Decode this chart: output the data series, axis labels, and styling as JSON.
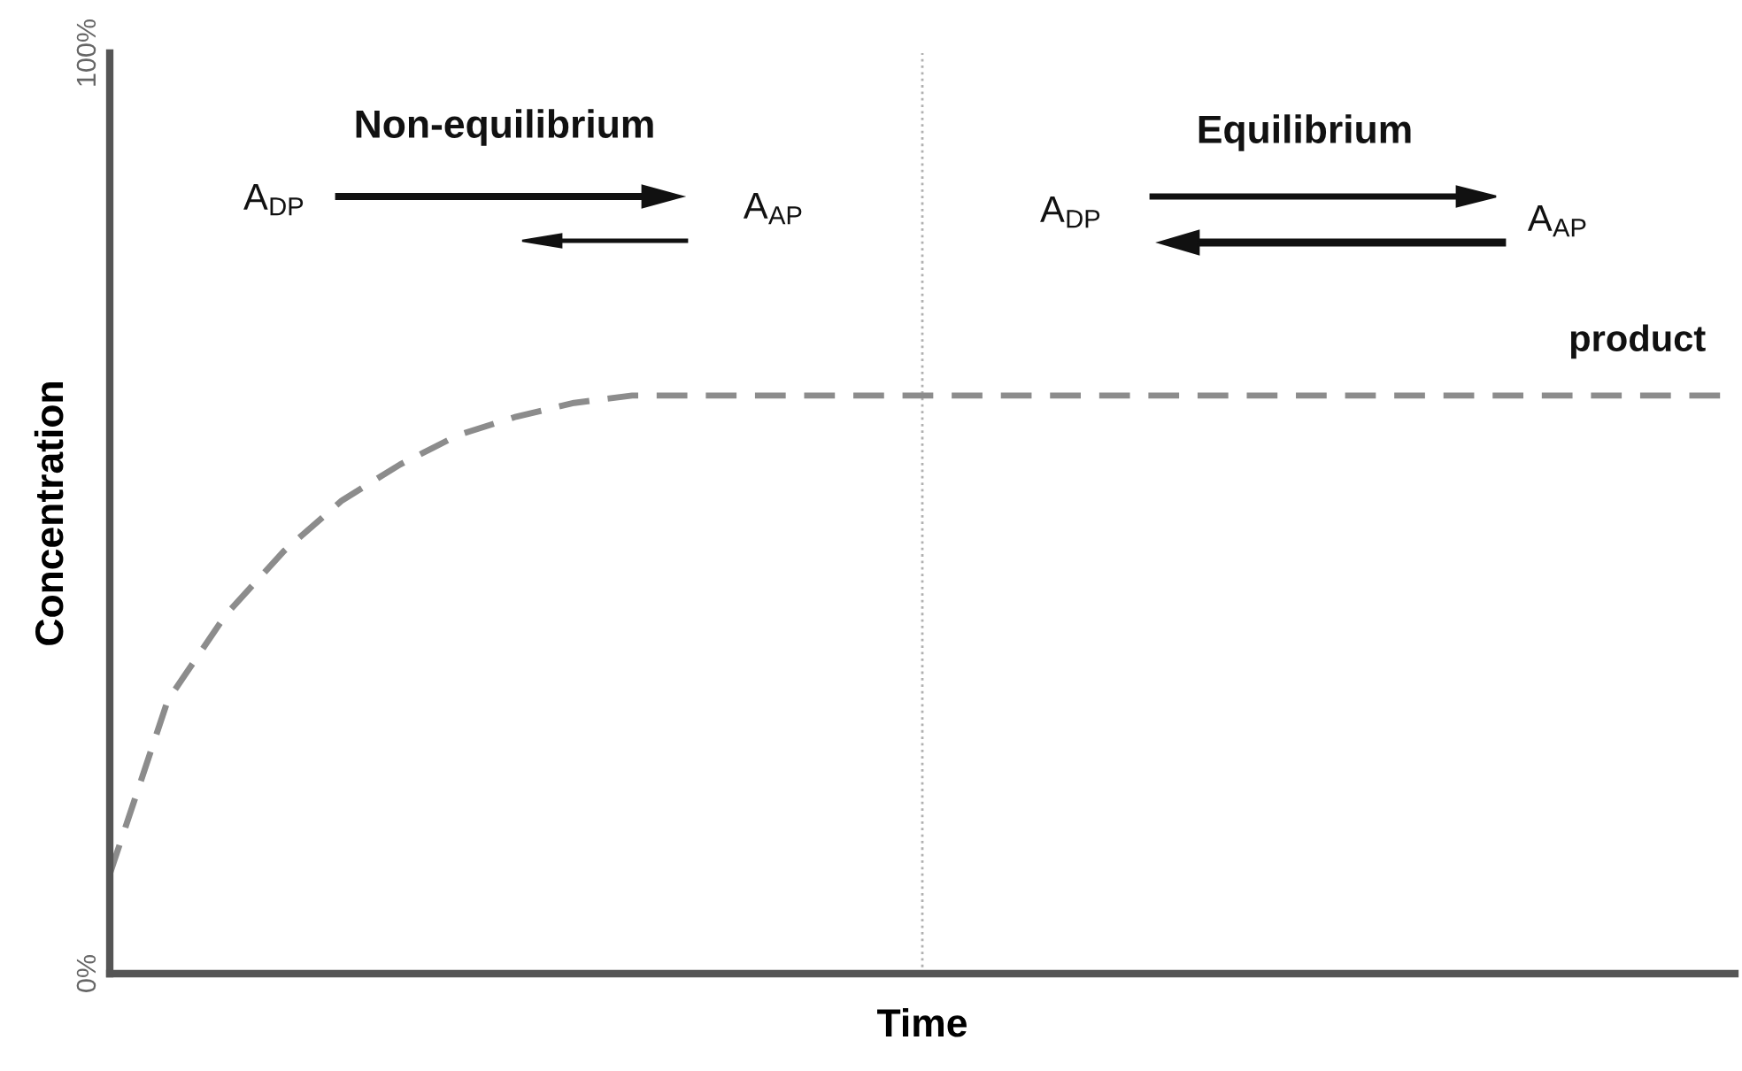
{
  "chart_data": {
    "type": "line",
    "xlabel": "Time",
    "ylabel": "Concentration",
    "categories": [
      null,
      null,
      null,
      null,
      null,
      null,
      null,
      null,
      null,
      null,
      null,
      null,
      null,
      null,
      null,
      null,
      null,
      null,
      null,
      null,
      null,
      null,
      null,
      null,
      null,
      null,
      null,
      null,
      null
    ],
    "series": [
      {
        "name": "product",
        "color": "#8c8c8c",
        "line_style": "dashed",
        "values": [
          10.8,
          29.7,
          39,
          45.9,
          51.4,
          55.3,
          58.5,
          60.5,
          62,
          62.8,
          62.8,
          62.8,
          62.8,
          62.8,
          62.8,
          62.8,
          62.8,
          62.8,
          62.8,
          62.8,
          62.8,
          62.8,
          62.8,
          62.8,
          62.8,
          62.8,
          62.8,
          62.8,
          62.8
        ]
      }
    ],
    "ylim": [
      0,
      100
    ],
    "yticks": [
      {
        "value": 0,
        "label": "0%"
      },
      {
        "value": 100,
        "label": "100%"
      }
    ],
    "tick_labels": "y",
    "annotations": [
      "Non-equilibrium",
      "A$_{DP}$",
      "A$_{AP}$",
      "Equilibrium",
      "A$_{DP}$",
      "A$_{AP}$"
    ]
  }
}
